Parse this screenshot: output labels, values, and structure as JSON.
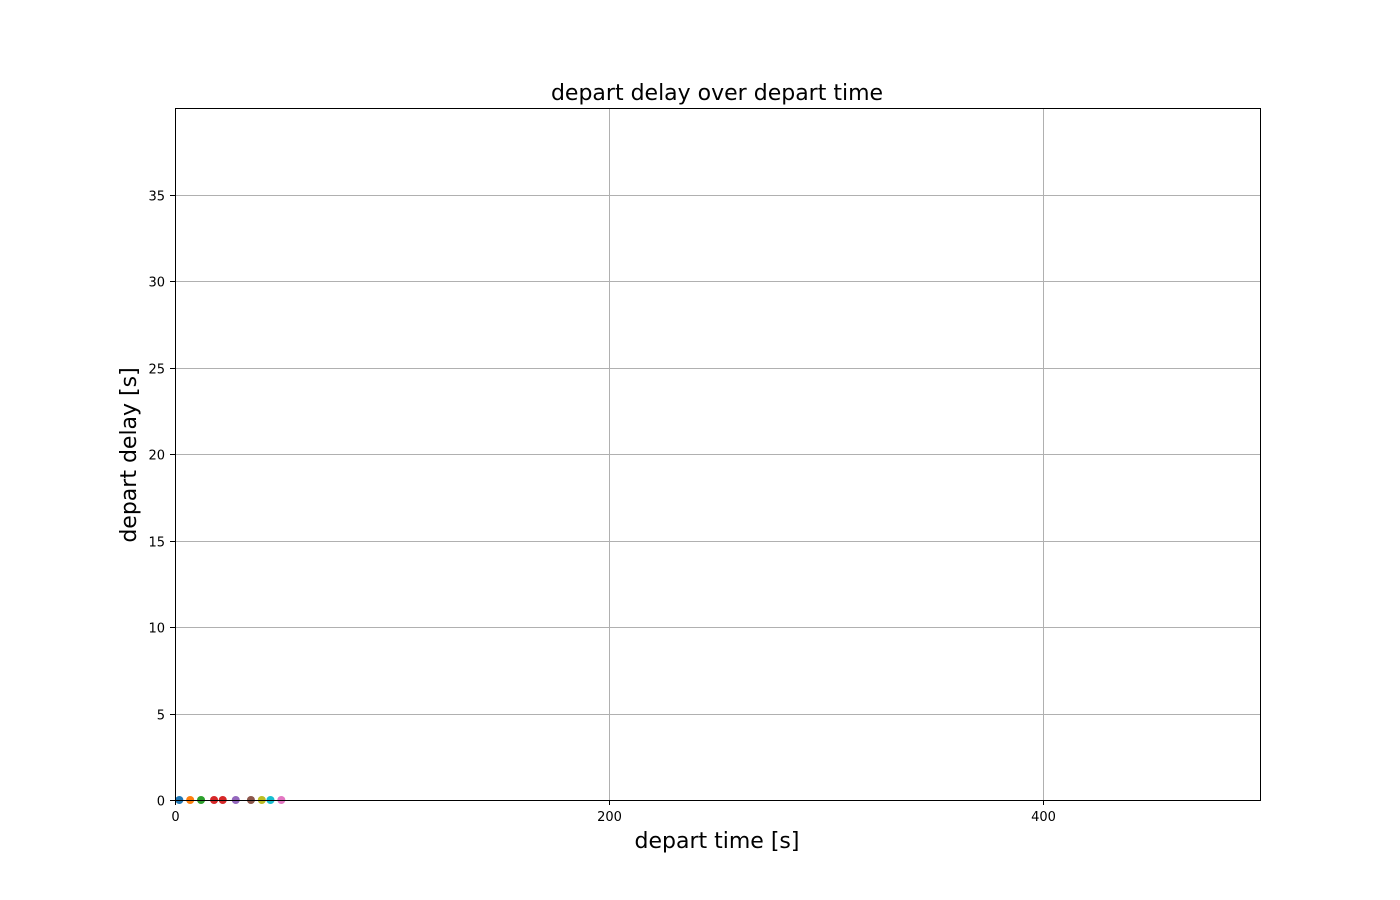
{
  "chart_data": {
    "type": "scatter",
    "title": "depart delay over depart time",
    "xlabel": "depart time [s]",
    "ylabel": "depart delay [s]",
    "xlim": [
      0,
      500
    ],
    "ylim": [
      0,
      40
    ],
    "xticks": [
      0,
      200,
      400
    ],
    "yticks": [
      0,
      5,
      10,
      15,
      20,
      25,
      30,
      35
    ],
    "grid": true,
    "series": [
      {
        "x": [
          2
        ],
        "y": [
          0
        ],
        "color": "#1f77b4"
      },
      {
        "x": [
          7
        ],
        "y": [
          0
        ],
        "color": "#ff7f0e"
      },
      {
        "x": [
          12
        ],
        "y": [
          0
        ],
        "color": "#2ca02c"
      },
      {
        "x": [
          18
        ],
        "y": [
          0
        ],
        "color": "#d62728"
      },
      {
        "x": [
          22
        ],
        "y": [
          0
        ],
        "color": "#d62728"
      },
      {
        "x": [
          28
        ],
        "y": [
          0
        ],
        "color": "#9467bd"
      },
      {
        "x": [
          35
        ],
        "y": [
          0
        ],
        "color": "#8c564b"
      },
      {
        "x": [
          40
        ],
        "y": [
          0
        ],
        "color": "#bcbd22"
      },
      {
        "x": [
          44
        ],
        "y": [
          0
        ],
        "color": "#17becf"
      },
      {
        "x": [
          49
        ],
        "y": [
          0
        ],
        "color": "#e377c2"
      }
    ]
  }
}
